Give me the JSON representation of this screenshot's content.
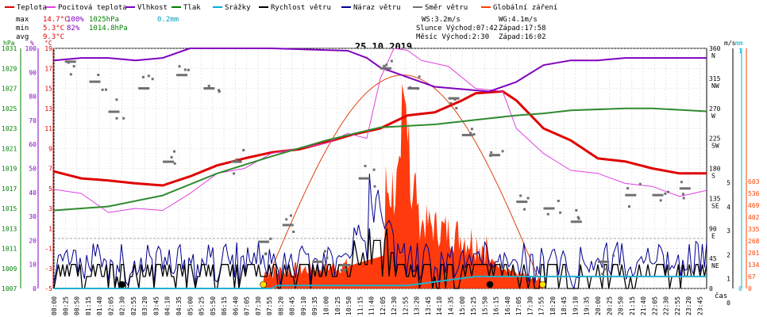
{
  "legend": [
    {
      "label": "Teplota",
      "color": "#e00000"
    },
    {
      "label": "Pocitová teplota",
      "color": "#e040e0"
    },
    {
      "label": "Vlhkost",
      "color": "#8000c0"
    },
    {
      "label": "Tlak",
      "color": "#008000"
    },
    {
      "label": "Srážky",
      "color": "#00b0d0"
    },
    {
      "label": "Rychlost větru",
      "color": "#000000"
    },
    {
      "label": "Náraz větru",
      "color": "#000090"
    },
    {
      "label": "Směr větru",
      "color": "#707070"
    },
    {
      "label": "Globální záření",
      "color": "#ff4000"
    }
  ],
  "stats": {
    "labels": [
      "max",
      "min",
      "avg"
    ],
    "max": {
      "temp": "14.7°C",
      "humidity": "100%",
      "pressure": "1025hPa",
      "rain": "0.2mm"
    },
    "min": {
      "temp": "5.3°C",
      "humidity": "82%",
      "pressure": "1014.8hPa"
    },
    "avg": {
      "temp": "9.3°C"
    }
  },
  "sun": {
    "ws": "WS:3.2m/s",
    "wg": "WG:4.1m/s",
    "sun_line": "Slunce Východ:07:42",
    "sun_set": "Západ:17:58",
    "moon_line": "Měsíc  Východ:2:30",
    "moon_set": "Západ:16:02"
  },
  "colors": {
    "temperature": "#e00000",
    "feels": "#e040e0",
    "humidity": "#8000c0",
    "pressure": "#2e8b2e",
    "rain": "#20b0d0",
    "wind": "#000000",
    "gust": "#000090",
    "winddir": "#707070",
    "radiation": "#ff3000",
    "grid": "#d8d8d8",
    "axis_hpa": "#008000",
    "axis_pct": "#8000c0",
    "axis_temp": "#e00000",
    "axis_ms": "#000000",
    "axis_mm": "#00b0d0",
    "axis_wm2": "#ff4000"
  },
  "axes": {
    "hpa": {
      "unit": "hPa",
      "ticks": [
        "1031",
        "1029",
        "1027",
        "1025",
        "1023",
        "1021",
        "1019",
        "1017",
        "1015",
        "1013",
        "1011",
        "1009",
        "1007"
      ]
    },
    "pct": {
      "unit": "%",
      "ticks": [
        "100",
        "90",
        "80",
        "70",
        "60",
        "50",
        "40",
        "30",
        "20",
        "10",
        "0"
      ]
    },
    "temp": {
      "unit": "°C",
      "ticks": [
        "19",
        "17",
        "15",
        "13",
        "11",
        "9",
        "7",
        "5",
        "3",
        "1",
        "-1",
        "-3",
        "-5"
      ]
    },
    "dir": {
      "ticks": [
        "360",
        "315",
        "270",
        "225",
        "180",
        "135",
        "90",
        "45",
        "0"
      ],
      "names": [
        "N",
        "NW",
        "W",
        "SW",
        "S",
        "SE",
        "E",
        "NE",
        ""
      ]
    },
    "ms": {
      "unit": "m/s",
      "ticks": [
        "5",
        "4",
        "3",
        "2",
        "1",
        "0"
      ]
    },
    "mm": {
      "unit": "mm",
      "ticks": [
        "1",
        "0"
      ]
    },
    "wm2": {
      "unit": "",
      "ticks": [
        "603",
        "536",
        "469",
        "402",
        "335",
        "268",
        "201",
        "134",
        "67",
        "0"
      ]
    }
  },
  "chart_data": {
    "type": "line",
    "title": "25.10.2019",
    "x_unit": "čas",
    "x_labels": [
      "00:00",
      "00:25",
      "00:50",
      "01:15",
      "01:40",
      "02:05",
      "02:30",
      "02:55",
      "03:20",
      "03:45",
      "04:10",
      "04:35",
      "05:00",
      "05:25",
      "05:50",
      "06:15",
      "06:40",
      "07:05",
      "07:30",
      "07:55",
      "08:20",
      "08:45",
      "09:10",
      "09:35",
      "10:00",
      "10:25",
      "10:50",
      "11:15",
      "11:40",
      "12:05",
      "12:30",
      "12:55",
      "13:20",
      "13:45",
      "14:10",
      "14:35",
      "15:00",
      "15:25",
      "15:50",
      "16:15",
      "16:40",
      "17:05",
      "17:30",
      "17:55",
      "18:20",
      "18:45",
      "19:10",
      "19:35",
      "20:00",
      "20:25",
      "20:50",
      "21:15",
      "21:40",
      "22:05",
      "22:30",
      "22:55",
      "23:20",
      "23:45"
    ],
    "x_range_hours": [
      0,
      24
    ],
    "series": [
      {
        "name": "Teplota",
        "axis": "temp",
        "points": [
          [
            0,
            6.7
          ],
          [
            1,
            6.0
          ],
          [
            2,
            5.8
          ],
          [
            3,
            5.5
          ],
          [
            4,
            5.3
          ],
          [
            5,
            6.2
          ],
          [
            6,
            7.3
          ],
          [
            7,
            8.0
          ],
          [
            8,
            8.6
          ],
          [
            9,
            8.9
          ],
          [
            10,
            9.6
          ],
          [
            11,
            10.4
          ],
          [
            12,
            11.0
          ],
          [
            13,
            12.3
          ],
          [
            14,
            12.6
          ],
          [
            15,
            13.8
          ],
          [
            15.5,
            14.5
          ],
          [
            16.5,
            14.7
          ],
          [
            17,
            13.8
          ],
          [
            18,
            11.0
          ],
          [
            19,
            9.8
          ],
          [
            20,
            8.0
          ],
          [
            21,
            7.7
          ],
          [
            22,
            7.0
          ],
          [
            23,
            6.5
          ],
          [
            24,
            6.5
          ]
        ]
      },
      {
        "name": "Pocitová teplota",
        "axis": "temp",
        "points": [
          [
            0,
            4.9
          ],
          [
            1,
            4.5
          ],
          [
            2,
            2.6
          ],
          [
            3,
            3.0
          ],
          [
            4,
            2.8
          ],
          [
            5,
            4.5
          ],
          [
            6,
            6.5
          ],
          [
            7,
            7.0
          ],
          [
            8,
            8.5
          ],
          [
            9,
            9.0
          ],
          [
            10,
            9.5
          ],
          [
            10.8,
            10.5
          ],
          [
            11.5,
            10.0
          ],
          [
            12,
            16.0
          ],
          [
            12.5,
            19.0
          ],
          [
            13,
            18.8
          ],
          [
            13.5,
            17.8
          ],
          [
            14.5,
            17.2
          ],
          [
            15.5,
            15.0
          ],
          [
            16.5,
            14.7
          ],
          [
            17,
            11.0
          ],
          [
            18,
            8.5
          ],
          [
            19,
            6.8
          ],
          [
            20,
            6.5
          ],
          [
            21,
            5.5
          ],
          [
            22,
            5.2
          ],
          [
            23,
            4.2
          ],
          [
            24,
            4.8
          ]
        ]
      },
      {
        "name": "Vlhkost",
        "axis": "pct",
        "points": [
          [
            0,
            95
          ],
          [
            1,
            96
          ],
          [
            2,
            96
          ],
          [
            3,
            95
          ],
          [
            4,
            96
          ],
          [
            5,
            100
          ],
          [
            7,
            100
          ],
          [
            8,
            100
          ],
          [
            10.8,
            99
          ],
          [
            11.5,
            96
          ],
          [
            12,
            92
          ],
          [
            13,
            88
          ],
          [
            14,
            84
          ],
          [
            15,
            83
          ],
          [
            16,
            82
          ],
          [
            17,
            86
          ],
          [
            18,
            93
          ],
          [
            19,
            95
          ],
          [
            20,
            95
          ],
          [
            21,
            96
          ],
          [
            24,
            96
          ]
        ]
      },
      {
        "name": "Tlak",
        "axis": "hpa",
        "points": [
          [
            0,
            1014.8
          ],
          [
            2,
            1015.2
          ],
          [
            4,
            1016.3
          ],
          [
            6,
            1018.5
          ],
          [
            8,
            1020.2
          ],
          [
            10,
            1021.8
          ],
          [
            12,
            1023.1
          ],
          [
            14,
            1023.4
          ],
          [
            16,
            1024.0
          ],
          [
            17,
            1024.3
          ],
          [
            18,
            1024.5
          ],
          [
            19,
            1024.8
          ],
          [
            21,
            1025.0
          ],
          [
            22,
            1025.0
          ],
          [
            24,
            1024.7
          ]
        ]
      },
      {
        "name": "Srážky",
        "axis": "mm",
        "points": [
          [
            0,
            0
          ],
          [
            8,
            0
          ],
          [
            8.2,
            0.05
          ],
          [
            13,
            0.05
          ],
          [
            15.5,
            0.2
          ],
          [
            24,
            0.2
          ]
        ]
      }
    ],
    "radiation_peak_wm2": 536,
    "ylim_temp": [
      -5,
      19
    ],
    "ylim_pct": [
      0,
      100
    ],
    "ylim_hpa": [
      1007,
      1031
    ]
  }
}
